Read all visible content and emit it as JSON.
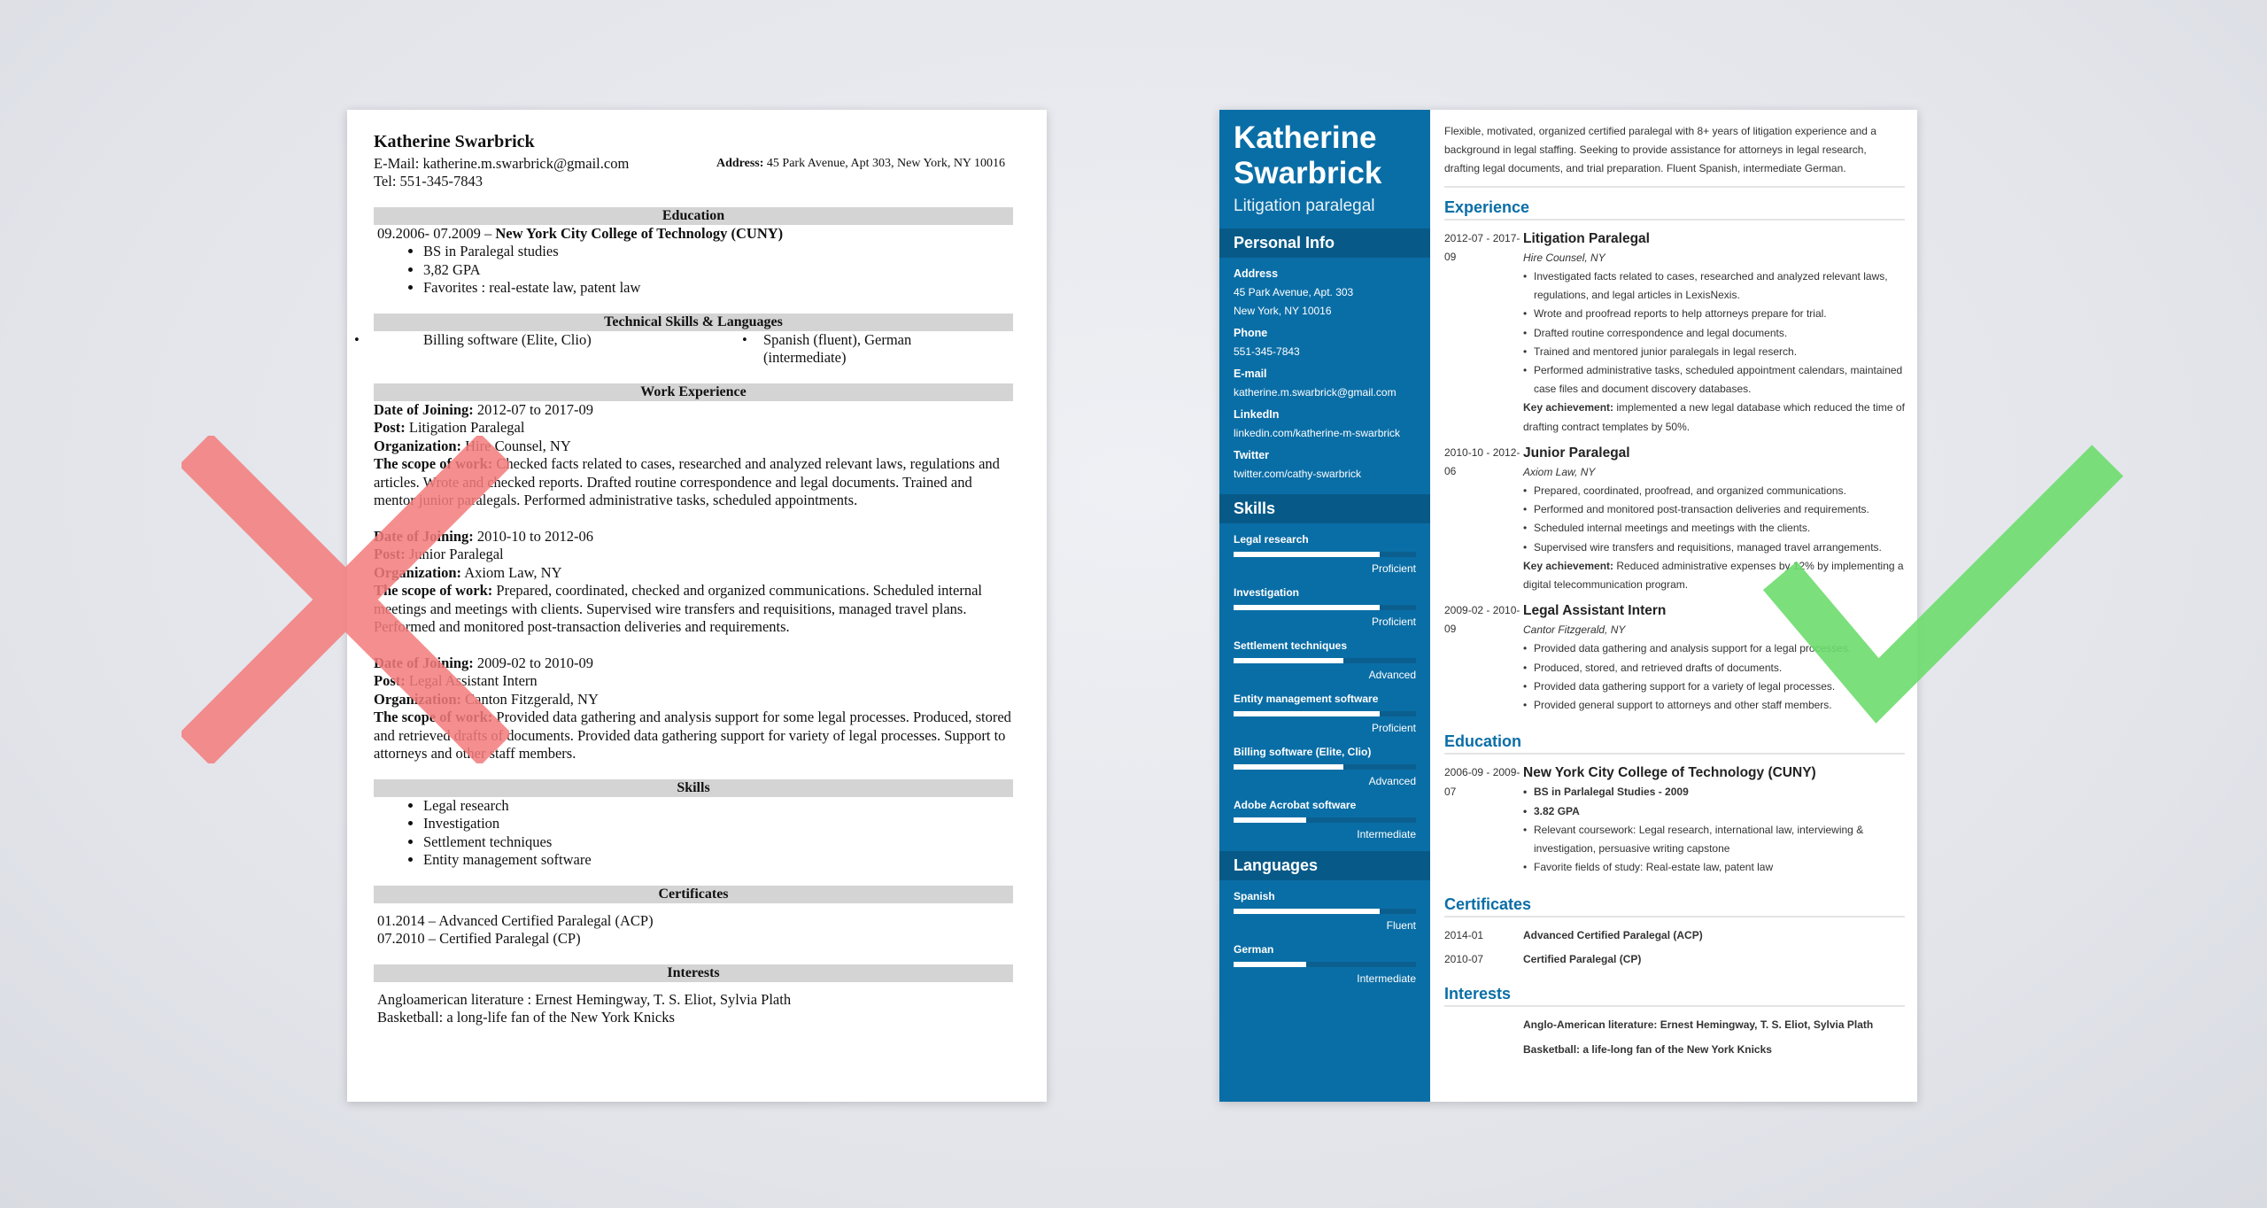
{
  "bad_resume": {
    "name": "Katherine Swarbrick",
    "email": "E-Mail: katherine.m.swarbrick@gmail.com",
    "tel": "Tel: 551-345-7843",
    "address_label": "Address:",
    "address": "45 Park Avenue, Apt 303, New York, NY 10016",
    "education_heading": "Education",
    "education_line_dates": "09.2006- 07.2009 – ",
    "education_line_school": "New York City College of Technology (CUNY)",
    "education_items": [
      "BS in Paralegal studies",
      "3,82 GPA",
      "Favorites : real-estate law, patent law"
    ],
    "tech_heading": "Technical Skills & Languages",
    "tech_left": "Billing software (Elite, Clio)",
    "tech_right": "Spanish (fluent), German (intermediate)",
    "work_heading": "Work Experience",
    "labels": {
      "date": "Date of Joining:",
      "post": "Post:",
      "org": "Organization:",
      "scope": "The scope of work:"
    },
    "jobs": [
      {
        "date": "2012-07 to 2017-09",
        "post": "Litigation Paralegal",
        "org": "Hire Counsel, NY",
        "scope": "Checked facts related to cases, researched and analyzed relevant laws, regulations and articles. Wrote and checked reports. Drafted routine correspondence and legal documents. Trained and mentor junior paralegals. Performed administrative tasks, scheduled appointments."
      },
      {
        "date": "2010-10 to 2012-06",
        "post": "Junior Paralegal",
        "org": "Axiom Law, NY",
        "scope": "Prepared, coordinated, checked and organized communications. Scheduled internal meetings and meetings with clients. Supervised wire transfers and requisitions, managed travel plans. Performed and monitored post-transaction deliveries and requirements."
      },
      {
        "date": "2009-02 to 2010-09",
        "post": "Legal Assistant Intern",
        "org": "Canton Fitzgerald, NY",
        "scope": "Provided data gathering and analysis support for some legal processes. Produced, stored and retrieved drafts of documents. Provided data gathering support for variety of legal processes. Support to attorneys and other staff members."
      }
    ],
    "skills_heading": "Skills",
    "skills": [
      "Legal research",
      "Investigation",
      "Settlement techniques",
      "Entity management software"
    ],
    "certificates_heading": "Certificates",
    "certificates": [
      "01.2014 – Advanced Certified Paralegal (ACP)",
      "07.2010 – Certified Paralegal (CP)"
    ],
    "interests_heading": "Interests",
    "interests": [
      "Angloamerican literature : Ernest Hemingway, T. S. Eliot, Sylvia Plath",
      "Basketball: a long-life fan of the New York Knicks"
    ]
  },
  "good_resume": {
    "first_name": "Katherine",
    "last_name": "Swarbrick",
    "title": "Litigation paralegal",
    "personal_heading": "Personal Info",
    "personal": [
      {
        "label": "Address",
        "lines": [
          "45 Park Avenue, Apt. 303",
          "New York, NY 10016"
        ]
      },
      {
        "label": "Phone",
        "lines": [
          "551-345-7843"
        ]
      },
      {
        "label": "E-mail",
        "lines": [
          "katherine.m.swarbrick@gmail.com"
        ]
      },
      {
        "label": "LinkedIn",
        "lines": [
          "linkedin.com/katherine-m-swarbrick"
        ]
      },
      {
        "label": "Twitter",
        "lines": [
          "twitter.com/cathy-swarbrick"
        ]
      }
    ],
    "skills_heading": "Skills",
    "skills": [
      {
        "name": "Legal research",
        "level": "Proficient",
        "fill": 0.8
      },
      {
        "name": "Investigation",
        "level": "Proficient",
        "fill": 0.8
      },
      {
        "name": "Settlement techniques",
        "level": "Advanced",
        "fill": 0.6
      },
      {
        "name": "Entity management software",
        "level": "Proficient",
        "fill": 0.8
      },
      {
        "name": "Billing software (Elite, Clio)",
        "level": "Advanced",
        "fill": 0.6
      },
      {
        "name": "Adobe Acrobat software",
        "level": "Intermediate",
        "fill": 0.4
      }
    ],
    "languages_heading": "Languages",
    "languages": [
      {
        "name": "Spanish",
        "level": "Fluent",
        "fill": 0.8
      },
      {
        "name": "German",
        "level": "Intermediate",
        "fill": 0.4
      }
    ],
    "summary": "Flexible, motivated, organized certified paralegal with 8+ years of litigation experience and a background in legal staffing. Seeking to provide assistance for attorneys in legal research, drafting legal documents, and trial preparation. Fluent Spanish, intermediate German.",
    "experience_heading": "Experience",
    "key_label": "Key achievement:",
    "experience": [
      {
        "dates": "2012-07 - 2017-09",
        "title": "Litigation Paralegal",
        "org": "Hire Counsel, NY",
        "bullets": [
          "Investigated facts related to cases, researched and analyzed relevant laws, regulations, and legal articles in LexisNexis.",
          "Wrote and proofread reports to help attorneys prepare for trial.",
          "Drafted routine correspondence and legal documents.",
          "Trained and mentored junior paralegals in legal reserch.",
          "Performed administrative tasks, scheduled appointment calendars, maintained case files and document discovery databases."
        ],
        "key": "implemented a new legal database which reduced the time of drafting contract templates by 50%."
      },
      {
        "dates": "2010-10 - 2012-06",
        "title": "Junior Paralegal",
        "org": "Axiom Law, NY",
        "bullets": [
          "Prepared, coordinated, proofread, and organized communications.",
          "Performed and monitored post-transaction deliveries and requirements.",
          "Scheduled internal meetings and meetings with the clients.",
          "Supervised wire transfers and requisitions, managed travel arrangements."
        ],
        "key": "Reduced administrative expenses by 12% by implementing a digital telecommunication program."
      },
      {
        "dates": "2009-02 - 2010-09",
        "title": "Legal Assistant Intern",
        "org": "Cantor Fitzgerald, NY",
        "bullets": [
          "Provided data gathering and analysis support for a legal processes.",
          "Produced, stored, and retrieved drafts of documents.",
          "Provided data gathering support for a variety of legal processes.",
          "Provided general support to attorneys and other staff members."
        ],
        "key": null
      }
    ],
    "education_heading": "Education",
    "education": {
      "dates": "2006-09 - 2009-07",
      "school": "New York City College of Technology (CUNY)",
      "bold_bullets": [
        "BS in Parlalegal Studies - 2009",
        "3.82 GPA"
      ],
      "bullets": [
        "Relevant coursework: Legal research, international law, interviewing & investigation, persuasive writing capstone",
        "Favorite fields of study: Real-estate law, patent law"
      ]
    },
    "certificates_heading": "Certificates",
    "certificates": [
      {
        "date": "2014-01",
        "name": "Advanced Certified Paralegal (ACP)"
      },
      {
        "date": "2010-07",
        "name": "Certified Paralegal (CP)"
      }
    ],
    "interests_heading": "Interests",
    "interests": [
      "Anglo-American literature: Ernest Hemingway, T. S. Eliot, Sylvia Plath",
      "Basketball: a life-long fan of the New York Knicks"
    ]
  },
  "colors": {
    "brand_blue": "#0a6ea6",
    "wrong_mark": "#f47c7c",
    "right_mark": "#6ddc6d"
  },
  "icons": {
    "wrong": "x-mark-icon",
    "right": "check-mark-icon"
  }
}
